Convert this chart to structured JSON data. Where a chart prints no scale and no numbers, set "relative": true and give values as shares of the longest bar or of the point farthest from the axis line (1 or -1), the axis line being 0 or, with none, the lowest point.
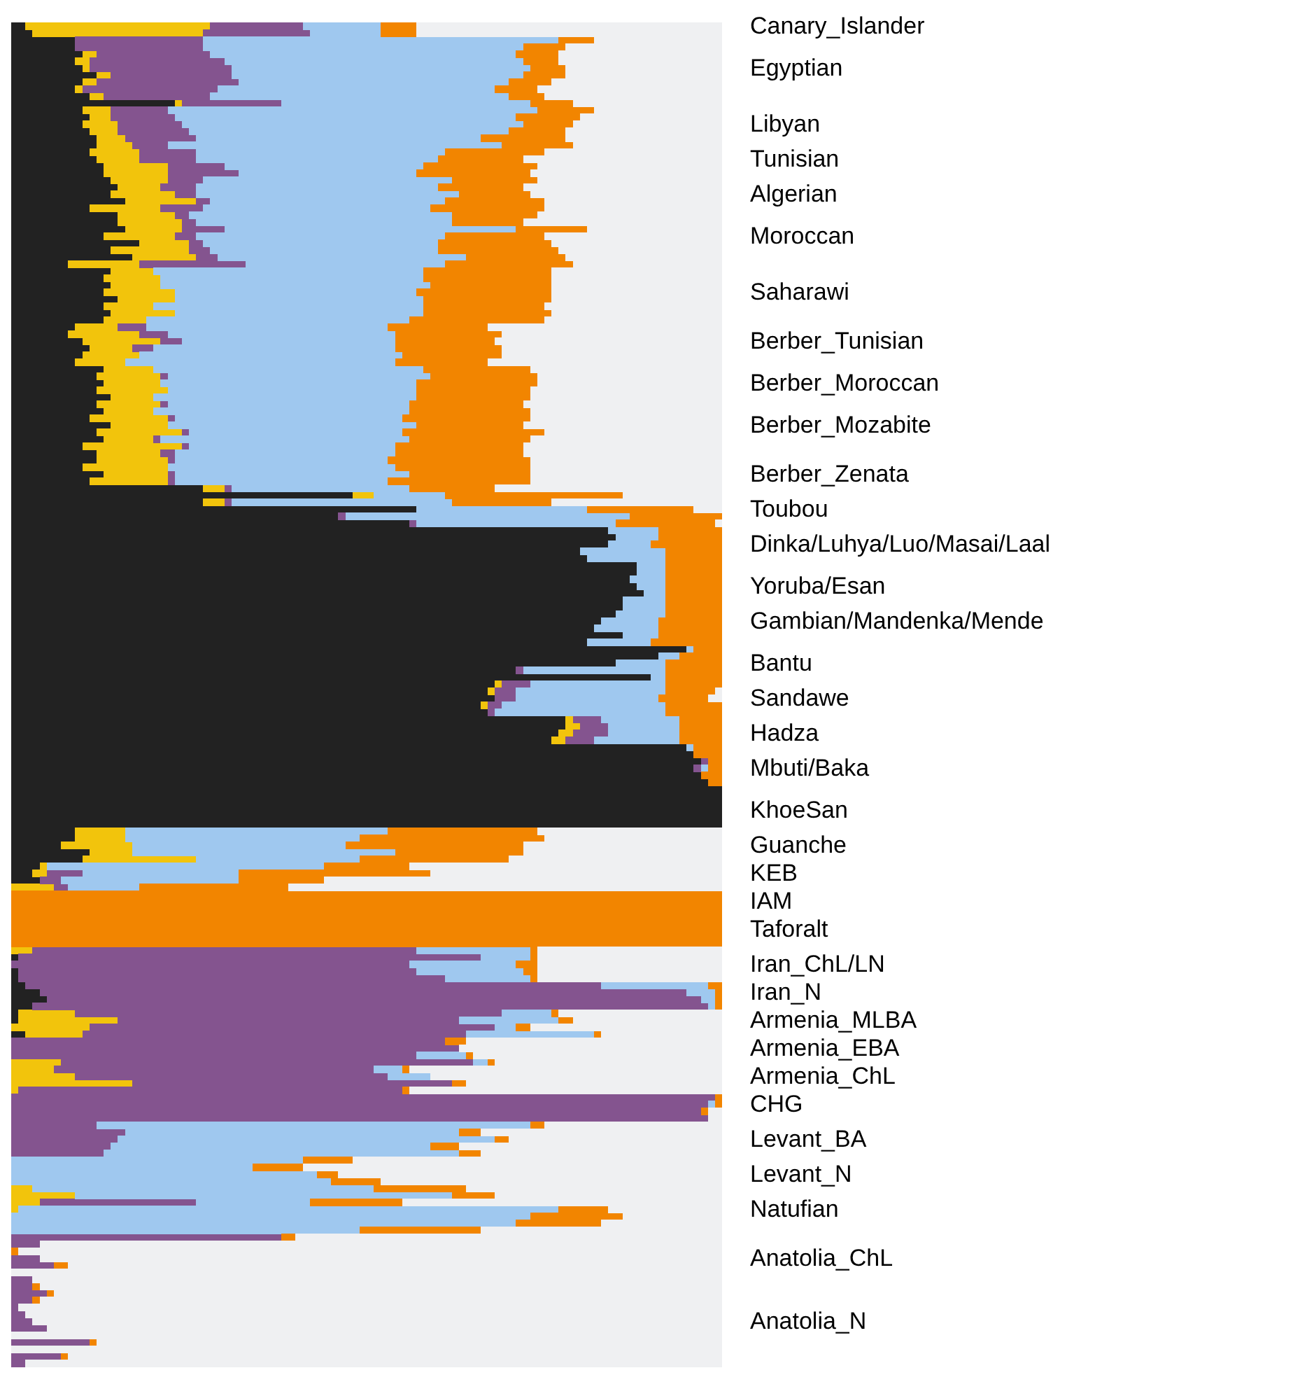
{
  "chart_data": {
    "type": "bar",
    "orientation": "horizontal",
    "stacked": true,
    "relative": true,
    "categories": [
      "Canary_Islander",
      null,
      null,
      null,
      null,
      null,
      "Egyptian",
      null,
      null,
      null,
      null,
      null,
      null,
      null,
      "Libyan",
      null,
      null,
      null,
      null,
      "Tunisian",
      null,
      null,
      null,
      null,
      "Algerian",
      null,
      null,
      null,
      null,
      null,
      "Moroccan",
      null,
      null,
      null,
      null,
      null,
      null,
      null,
      "Saharawi",
      null,
      null,
      null,
      null,
      null,
      null,
      "Berber_Tunisian",
      null,
      null,
      null,
      null,
      null,
      "Berber_Moroccan",
      null,
      null,
      null,
      null,
      null,
      "Berber_Mozabite",
      null,
      null,
      null,
      null,
      null,
      null,
      "Berber_Zenata",
      null,
      null,
      null,
      null,
      "Toubou",
      null,
      null,
      null,
      null,
      "Dinka/Luhya/Luo/Masai/Laal",
      null,
      null,
      null,
      null,
      null,
      "Yoruba/Esan",
      null,
      null,
      null,
      null,
      "Gambian/Mandenka/Mende",
      null,
      null,
      null,
      null,
      null,
      "Bantu",
      null,
      null,
      null,
      null,
      "Sandawe",
      null,
      null,
      null,
      null,
      "Hadza",
      null,
      null,
      null,
      null,
      "Mbuti/Baka",
      null,
      null,
      null,
      null,
      null,
      "KhoeSan",
      null,
      null,
      null,
      null,
      "Guanche",
      null,
      null,
      null,
      "KEB",
      null,
      null,
      null,
      "IAM",
      null,
      null,
      null,
      "Taforalt",
      null,
      null,
      null,
      null,
      "Iran_ChL/LN",
      null,
      null,
      null,
      "Iran_N",
      null,
      null,
      null,
      "Armenia_MLBA",
      null,
      null,
      null,
      "Armenia_EBA",
      null,
      null,
      null,
      "Armenia_ChL",
      null,
      null,
      null,
      "CHG",
      null,
      null,
      null,
      null,
      "Levant_BA",
      null,
      null,
      null,
      null,
      "Levant_N",
      null,
      null,
      null,
      null,
      "Natufian",
      null,
      null,
      null,
      null,
      null,
      null,
      "Anatolia_ChL",
      null,
      null,
      null,
      null,
      null,
      null,
      null,
      null,
      "Anatolia_N",
      null,
      null,
      null,
      null,
      null,
      null
    ],
    "series": [
      {
        "color": "#222222",
        "values": [
          0.02,
          0.03,
          0.09,
          0.09,
          0.1,
          0.09,
          0.1,
          0.12,
          0.1,
          0.09,
          0.11,
          0.23,
          0.1,
          0.11,
          0.1,
          0.11,
          0.12,
          0.12,
          0.11,
          0.12,
          0.13,
          0.13,
          0.14,
          0.15,
          0.14,
          0.16,
          0.11,
          0.15,
          0.15,
          0.16,
          0.13,
          0.18,
          0.14,
          0.17,
          0.08,
          0.14,
          0.13,
          0.14,
          0.13,
          0.15,
          0.13,
          0.14,
          0.13,
          0.09,
          0.08,
          0.1,
          0.11,
          0.1,
          0.09,
          0.13,
          0.12,
          0.13,
          0.12,
          0.14,
          0.12,
          0.13,
          0.11,
          0.14,
          0.12,
          0.13,
          0.1,
          0.12,
          0.12,
          0.1,
          0.13,
          0.11,
          0.27,
          0.48,
          0.27,
          0.57,
          0.46,
          0.56,
          0.84,
          0.85,
          0.84,
          0.8,
          0.81,
          0.88,
          0.88,
          0.87,
          0.88,
          0.89,
          0.86,
          0.86,
          0.85,
          0.83,
          0.82,
          0.86,
          0.81,
          0.95,
          0.91,
          0.85,
          0.71,
          0.9,
          0.68,
          0.67,
          0.68,
          0.66,
          0.67,
          0.78,
          0.78,
          0.77,
          0.76,
          0.95,
          0.96,
          0.97,
          0.96,
          0.97,
          0.98,
          1,
          1,
          1,
          1,
          1,
          1,
          0.09,
          0.09,
          0.07,
          0.11,
          0.1,
          0.04,
          0.03,
          0.04,
          0,
          0,
          0,
          0,
          0,
          0,
          0,
          0,
          0,
          0,
          0.01,
          0,
          0.01,
          0.01,
          0.02,
          0.04,
          0.05,
          0.03,
          0.01,
          0.01,
          0,
          0.02,
          0,
          0,
          0,
          0,
          0,
          0,
          0,
          0,
          0,
          0,
          0,
          0,
          0,
          0,
          0,
          0,
          0,
          0,
          0,
          0,
          0,
          0,
          0,
          0,
          0,
          0,
          0,
          0,
          0,
          0,
          0,
          0,
          0,
          0,
          0,
          0,
          0,
          0,
          0,
          0,
          0,
          0,
          0,
          0,
          0,
          0,
          0
        ]
      },
      {
        "color": "#f2c40c",
        "values": [
          0.26,
          0.24,
          0,
          0,
          0.02,
          0.02,
          0.01,
          0.02,
          0.02,
          0.01,
          0.02,
          0.01,
          0.04,
          0.03,
          0.05,
          0.04,
          0.04,
          0.05,
          0.07,
          0.06,
          0.09,
          0.09,
          0.08,
          0.06,
          0.09,
          0.1,
          0.1,
          0.08,
          0.09,
          0.08,
          0.1,
          0.07,
          0.11,
          0.09,
          0.1,
          0.06,
          0.08,
          0.07,
          0.1,
          0.08,
          0.07,
          0.09,
          0.06,
          0.06,
          0.1,
          0.11,
          0.06,
          0.08,
          0.07,
          0.07,
          0.09,
          0.08,
          0.1,
          0.06,
          0.09,
          0.07,
          0.11,
          0.08,
          0.12,
          0.07,
          0.14,
          0.09,
          0.1,
          0.12,
          0.09,
          0.11,
          0.03,
          0.03,
          0.03,
          0,
          0,
          0,
          0,
          0,
          0,
          0,
          0,
          0,
          0,
          0,
          0,
          0,
          0,
          0,
          0,
          0,
          0,
          0,
          0,
          0,
          0,
          0,
          0,
          0,
          0.01,
          0.01,
          0,
          0.01,
          0,
          0.01,
          0.02,
          0.02,
          0.02,
          0,
          0,
          0,
          0,
          0,
          0,
          0,
          0,
          0,
          0,
          0,
          0,
          0.07,
          0.07,
          0.1,
          0.06,
          0.16,
          0.01,
          0.02,
          0,
          0.06,
          0,
          0,
          0,
          0,
          0,
          0,
          0,
          0,
          0.03,
          0,
          0,
          0,
          0,
          0,
          0,
          0,
          0,
          0.08,
          0.14,
          0.11,
          0.08,
          0,
          0,
          0,
          0.07,
          0.06,
          0.09,
          0.17,
          0.01,
          0,
          0,
          0,
          0,
          0,
          0,
          0,
          0,
          0,
          0,
          0,
          0,
          0,
          0.03,
          0.09,
          0.04,
          0.01,
          0,
          0,
          0,
          0,
          0,
          0,
          0,
          0,
          0,
          0,
          0,
          0,
          0,
          0,
          0,
          0,
          0,
          0,
          0,
          0,
          0,
          0
        ]
      },
      {
        "color": "#84548f",
        "values": [
          0.13,
          0.15,
          0.18,
          0.18,
          0.16,
          0.19,
          0.2,
          0.17,
          0.2,
          0.19,
          0.15,
          0.14,
          0.08,
          0.09,
          0.09,
          0.1,
          0.1,
          0.05,
          0.08,
          0.08,
          0.08,
          0.1,
          0.05,
          0.05,
          0.03,
          0.02,
          0.06,
          0.02,
          0.02,
          0.06,
          0.03,
          0.02,
          0.03,
          0.03,
          0.15,
          0,
          0,
          0,
          0,
          0,
          0,
          0,
          0,
          0.04,
          0.04,
          0.03,
          0.03,
          0,
          0,
          0,
          0.01,
          0,
          0,
          0,
          0.01,
          0,
          0.01,
          0,
          0.01,
          0.01,
          0.01,
          0.02,
          0.01,
          0,
          0.01,
          0.01,
          0.01,
          0,
          0.01,
          0,
          0.01,
          0.01,
          0,
          0,
          0,
          0,
          0,
          0,
          0,
          0,
          0,
          0,
          0,
          0,
          0,
          0,
          0,
          0,
          0,
          0,
          0,
          0,
          0.01,
          0,
          0.04,
          0.03,
          0.03,
          0.02,
          0.01,
          0.04,
          0.04,
          0.05,
          0.04,
          0,
          0,
          0.01,
          0.01,
          0,
          0,
          0,
          0,
          0,
          0,
          0,
          0,
          0,
          0,
          0,
          0,
          0,
          0,
          0.05,
          0.03,
          0.02,
          0,
          0,
          0,
          0,
          0,
          0,
          0,
          0,
          0.54,
          0.65,
          0.56,
          0.56,
          0.6,
          0.81,
          0.91,
          0.92,
          0.95,
          0.6,
          0.48,
          0.57,
          0.54,
          0.61,
          0.63,
          0.57,
          0.58,
          0.45,
          0.44,
          0.45,
          0.54,
          0.99,
          0.98,
          0.97,
          0.98,
          0.12,
          0.16,
          0.15,
          0.14,
          0.13,
          0,
          0,
          0,
          0,
          0,
          0,
          0.22,
          0,
          0,
          0,
          0,
          0.38,
          0.04,
          0,
          0.04,
          0.06,
          0,
          0.03,
          0.03,
          0.05,
          0.03,
          0.01,
          0.02,
          0.03,
          0.05,
          0,
          0.11,
          0,
          0.07,
          0.02
        ]
      },
      {
        "color": "#9fc8ef",
        "values": [
          0.11,
          0.1,
          0.5,
          0.45,
          0.43,
          0.42,
          0.42,
          0.41,
          0.38,
          0.39,
          0.42,
          0.35,
          0.52,
          0.48,
          0.48,
          0.45,
          0.4,
          0.47,
          0.35,
          0.34,
          0.28,
          0.25,
          0.35,
          0.34,
          0.37,
          0.33,
          0.32,
          0.37,
          0.36,
          0.41,
          0.35,
          0.33,
          0.32,
          0.35,
          0.28,
          0.38,
          0.37,
          0.38,
          0.34,
          0.35,
          0.38,
          0.35,
          0.37,
          0.34,
          0.32,
          0.3,
          0.34,
          0.37,
          0.38,
          0.38,
          0.37,
          0.36,
          0.35,
          0.37,
          0.34,
          0.36,
          0.32,
          0.35,
          0.3,
          0.35,
          0.29,
          0.31,
          0.3,
          0.32,
          0.33,
          0.3,
          0.25,
          0.1,
          0.31,
          0.24,
          0.4,
          0.28,
          0.07,
          0.06,
          0.06,
          0.12,
          0.11,
          0.04,
          0.04,
          0.05,
          0.04,
          0.03,
          0.06,
          0.06,
          0.07,
          0.08,
          0.09,
          0.05,
          0.09,
          0.01,
          0.03,
          0.07,
          0.2,
          0.02,
          0.19,
          0.21,
          0.2,
          0.23,
          0.24,
          0.11,
          0.1,
          0.1,
          0.12,
          0.01,
          0,
          0,
          0.01,
          0,
          0,
          0,
          0,
          0,
          0,
          0,
          0,
          0.37,
          0.33,
          0.3,
          0.37,
          0.23,
          0.39,
          0.22,
          0.25,
          0.1,
          0,
          0,
          0,
          0,
          0,
          0,
          0,
          0,
          0.16,
          0.07,
          0.15,
          0.15,
          0.12,
          0.15,
          0.04,
          0.02,
          0.01,
          0.07,
          0.14,
          0.03,
          0.18,
          0,
          0,
          0.07,
          0.02,
          0.04,
          0.06,
          0,
          0,
          0,
          0.01,
          0,
          0,
          0.61,
          0.47,
          0.53,
          0.45,
          0.5,
          0.41,
          0.34,
          0.43,
          0.45,
          0.48,
          0.53,
          0.16,
          0.76,
          0.73,
          0.71,
          0.49,
          0,
          0,
          0,
          0,
          0,
          0,
          0,
          0,
          0,
          0,
          0,
          0,
          0,
          0,
          0,
          0,
          0,
          0,
          0
        ]
      },
      {
        "color": "#f28500",
        "values": [
          0.05,
          0.05,
          0.05,
          0.06,
          0.06,
          0.05,
          0.05,
          0.06,
          0.06,
          0.06,
          0.05,
          0.06,
          0.08,
          0.09,
          0.07,
          0.08,
          0.12,
          0.1,
          0.14,
          0.12,
          0.16,
          0.16,
          0.12,
          0.12,
          0.1,
          0.14,
          0.16,
          0.12,
          0.1,
          0.1,
          0.14,
          0.16,
          0.17,
          0.14,
          0.18,
          0.18,
          0.18,
          0.17,
          0.19,
          0.18,
          0.17,
          0.18,
          0.19,
          0.14,
          0.15,
          0.14,
          0.15,
          0.14,
          0.13,
          0.15,
          0.15,
          0.17,
          0.16,
          0.16,
          0.16,
          0.17,
          0.18,
          0.15,
          0.2,
          0.17,
          0.18,
          0.18,
          0.2,
          0.19,
          0.17,
          0.2,
          0.12,
          0.25,
          0.14,
          0.15,
          0.13,
          0.14,
          0.09,
          0.09,
          0.1,
          0.08,
          0.08,
          0.08,
          0.08,
          0.08,
          0.08,
          0.08,
          0.08,
          0.08,
          0.08,
          0.09,
          0.09,
          0.09,
          0.1,
          0.04,
          0.06,
          0.08,
          0.08,
          0.08,
          0.08,
          0.07,
          0.07,
          0.08,
          0.08,
          0.06,
          0.06,
          0.06,
          0.06,
          0.04,
          0.04,
          0.02,
          0.02,
          0.03,
          0.02,
          0,
          0,
          0,
          0,
          0,
          0,
          0.21,
          0.26,
          0.25,
          0.18,
          0.21,
          0.12,
          0.27,
          0.12,
          0.21,
          1,
          1,
          1,
          1,
          1,
          1,
          1,
          1,
          0.01,
          0.01,
          0.03,
          0.02,
          0.01,
          0.02,
          0.01,
          0.01,
          0.01,
          0.01,
          0.02,
          0.02,
          0.01,
          0.03,
          0,
          0.01,
          0.01,
          0.01,
          0,
          0.02,
          0.01,
          0.01,
          0.01,
          0.01,
          0,
          0.02,
          0.03,
          0.02,
          0.04,
          0.03,
          0.07,
          0.07,
          0.03,
          0.07,
          0.13,
          0.06,
          0.13,
          0.07,
          0.13,
          0.12,
          0.17,
          0.02,
          0,
          0.01,
          0,
          0.02,
          0,
          0,
          0.01,
          0.01,
          0.01,
          0,
          0,
          0,
          0,
          0,
          0.01,
          0,
          0.01,
          0
        ]
      },
      {
        "color": "#eff0f2",
        "values": [
          0.43,
          0.43,
          0.18,
          0.22,
          0.23,
          0.23,
          0.22,
          0.22,
          0.24,
          0.26,
          0.25,
          0.21,
          0.18,
          0.2,
          0.21,
          0.22,
          0.22,
          0.21,
          0.25,
          0.28,
          0.26,
          0.27,
          0.26,
          0.28,
          0.27,
          0.25,
          0.25,
          0.26,
          0.28,
          0.19,
          0.25,
          0.24,
          0.23,
          0.22,
          0.21,
          0.24,
          0.24,
          0.24,
          0.24,
          0.24,
          0.25,
          0.24,
          0.25,
          0.33,
          0.31,
          0.32,
          0.31,
          0.31,
          0.33,
          0.27,
          0.26,
          0.26,
          0.27,
          0.27,
          0.28,
          0.27,
          0.27,
          0.28,
          0.25,
          0.27,
          0.28,
          0.28,
          0.27,
          0.27,
          0.27,
          0.27,
          0.32,
          0.14,
          0.24,
          0.04,
          0,
          0.01,
          0,
          0,
          0,
          0,
          0,
          0,
          0,
          0,
          0,
          0,
          0,
          0,
          0,
          0,
          0,
          0,
          0,
          0,
          0,
          0,
          0,
          0,
          0,
          0.01,
          0.02,
          0,
          0,
          0,
          0,
          0,
          0,
          0,
          0,
          0,
          0,
          0,
          0,
          0,
          0,
          0,
          0,
          0,
          0,
          0.26,
          0.25,
          0.28,
          0.28,
          0.3,
          0.44,
          0.41,
          0.56,
          0.61,
          0,
          0,
          0,
          0,
          0,
          0,
          0,
          0,
          0.26,
          0.26,
          0.26,
          0.26,
          0.26,
          0,
          0,
          0,
          0,
          0.23,
          0.21,
          0.27,
          0.17,
          0.36,
          0.37,
          0.35,
          0.32,
          0.44,
          0.41,
          0.36,
          0.44,
          0,
          0,
          0.02,
          0.02,
          0.25,
          0.34,
          0.3,
          0.37,
          0.34,
          0.52,
          0.59,
          0.54,
          0.48,
          0.36,
          0.32,
          0.45,
          0.16,
          0.14,
          0.17,
          0.34,
          0.6,
          0.96,
          0.99,
          0.96,
          0.92,
          1,
          0.97,
          0.96,
          0.94,
          0.96,
          0.99,
          0.98,
          0.97,
          0.95,
          1,
          0.88,
          1,
          0.92,
          0.98
        ]
      }
    ]
  }
}
